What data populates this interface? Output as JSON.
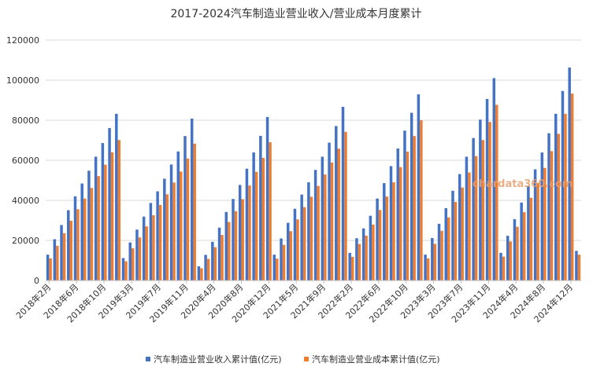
{
  "chart_data": {
    "type": "bar",
    "title": "2017-2024汽车制造业营业收入/营业成本月度累计",
    "xlabel": "",
    "ylabel": "",
    "ylim": [
      0,
      120000
    ],
    "yticks": [
      "0",
      "20000",
      "40000",
      "60000",
      "80000",
      "100000",
      "120000"
    ],
    "grid": true,
    "legend_position": "bottom",
    "categories": [
      "2018年2月",
      "2018年3月",
      "2018年4月",
      "2018年5月",
      "2018年6月",
      "2018年7月",
      "2018年8月",
      "2018年9月",
      "2018年10月",
      "2018年11月",
      "2018年12月",
      "2019年2月",
      "2019年3月",
      "2019年4月",
      "2019年5月",
      "2019年6月",
      "2019年7月",
      "2019年8月",
      "2019年9月",
      "2019年10月",
      "2019年11月",
      "2019年12月",
      "2020年2月",
      "2020年3月",
      "2020年4月",
      "2020年5月",
      "2020年6月",
      "2020年7月",
      "2020年8月",
      "2020年9月",
      "2020年10月",
      "2020年11月",
      "2020年12月",
      "2021年2月",
      "2021年3月",
      "2021年4月",
      "2021年5月",
      "2021年6月",
      "2021年7月",
      "2021年8月",
      "2021年9月",
      "2021年10月",
      "2021年11月",
      "2021年12月",
      "2022年2月",
      "2022年3月",
      "2022年4月",
      "2022年5月",
      "2022年6月",
      "2022年7月",
      "2022年8月",
      "2022年9月",
      "2022年10月",
      "2022年11月",
      "2022年12月",
      "2023年2月",
      "2023年3月",
      "2023年4月",
      "2023年5月",
      "2023年6月",
      "2023年7月",
      "2023年8月",
      "2023年9月",
      "2023年10月",
      "2023年11月",
      "2023年12月",
      "2024年2月",
      "2024年3月",
      "2024年4月",
      "2024年5月",
      "2024年6月",
      "2024年7月",
      "2024年8月",
      "2024年9月",
      "2024年10月",
      "2024年11月",
      "2024年12月",
      "2025年2月"
    ],
    "xtick_labels": [
      "2018年2月",
      "2018年6月",
      "2018年10月",
      "2019年3月",
      "2019年7月",
      "2019年11月",
      "2020年4月",
      "2020年8月",
      "2020年12月",
      "2021年5月",
      "2021年9月",
      "2022年2月",
      "2022年6月",
      "2022年10月",
      "2023年3月",
      "2023年7月",
      "2023年11月",
      "2024年4月",
      "2024年8月",
      "2024年12月"
    ],
    "series": [
      {
        "name": "汽车制造业营业收入累计值(亿元)",
        "color": "#4472c4",
        "values": [
          12900,
          20600,
          27700,
          35100,
          42000,
          48400,
          54800,
          61800,
          68600,
          76100,
          83200,
          11200,
          19000,
          25400,
          31900,
          38700,
          44500,
          50800,
          57900,
          64400,
          72100,
          80800,
          7100,
          12800,
          19300,
          26400,
          34200,
          40700,
          47700,
          55800,
          63900,
          72200,
          81600,
          12900,
          21000,
          28800,
          35800,
          42900,
          49000,
          55200,
          61800,
          68800,
          77100,
          86700,
          13800,
          21100,
          26000,
          32300,
          40900,
          48600,
          57100,
          65900,
          74800,
          83700,
          92900,
          12900,
          21200,
          28300,
          36100,
          44800,
          53100,
          61800,
          71100,
          80300,
          90600,
          101000,
          13800,
          22300,
          30600,
          38900,
          47100,
          55500,
          63900,
          73500,
          83200,
          94600,
          106300,
          14800
        ]
      },
      {
        "name": "汽车制造业营业成本累计值(亿元)",
        "color": "#ed7d31",
        "values": [
          11000,
          17300,
          23600,
          29800,
          35600,
          40900,
          46200,
          52100,
          57800,
          64000,
          70100,
          9600,
          16100,
          21500,
          27000,
          32600,
          37700,
          43000,
          48900,
          54400,
          60900,
          68300,
          6100,
          10800,
          16600,
          22700,
          29200,
          34600,
          40600,
          47400,
          54200,
          61200,
          69000,
          10900,
          17800,
          24600,
          30500,
          36600,
          41800,
          47200,
          52900,
          58900,
          65800,
          74200,
          11800,
          18200,
          22400,
          27900,
          35200,
          41900,
          49000,
          56600,
          64300,
          72100,
          80000,
          11000,
          18300,
          24800,
          31500,
          39200,
          46400,
          53900,
          62100,
          70100,
          79100,
          87700,
          11900,
          19500,
          26800,
          34100,
          41300,
          48700,
          56200,
          64600,
          73200,
          83200,
          93300,
          12900
        ]
      }
    ],
    "annotations": [
      "chardata360.com"
    ]
  }
}
